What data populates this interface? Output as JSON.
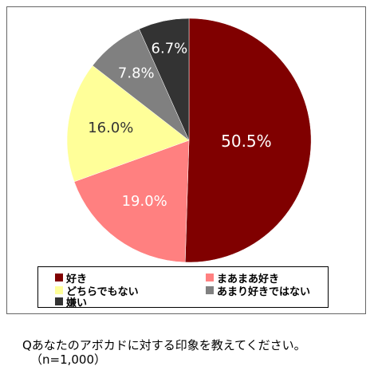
{
  "chart_data": {
    "type": "pie",
    "slices": [
      {
        "label": "好き",
        "value": 50.5,
        "value_label": "50.5%",
        "color": "#800000"
      },
      {
        "label": "まあまあ好き",
        "value": 19.0,
        "value_label": "19.0%",
        "color": "#ff8080"
      },
      {
        "label": "どちらでもない",
        "value": 16.0,
        "value_label": "16.0%",
        "color": "#ffff99"
      },
      {
        "label": "あまり好きではない",
        "value": 7.8,
        "value_label": "7.8%",
        "color": "#808080"
      },
      {
        "label": "嫌い",
        "value": 6.7,
        "value_label": "6.7%",
        "color": "#333333"
      }
    ],
    "legend_placement": "bottom",
    "start": "top",
    "direction": "clockwise"
  },
  "caption": {
    "question": "Qあなたのアボカドに対する印象を教えてください。",
    "sample": "（n=1,000）"
  }
}
